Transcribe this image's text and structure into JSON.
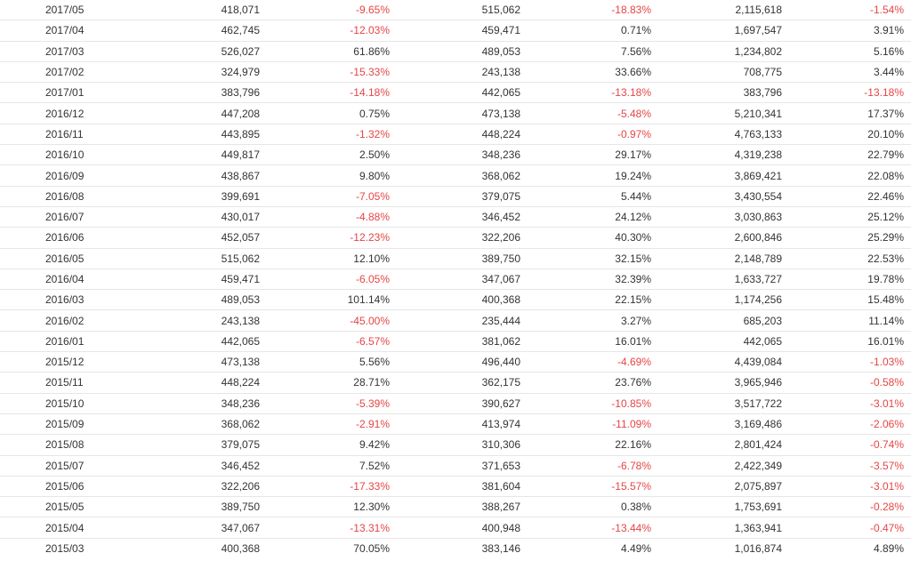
{
  "colors": {
    "text": "#333333",
    "negative": "#e64545",
    "row_border": "#e6e6e6"
  },
  "rows": [
    {
      "date": "2017/05",
      "v1": "418,071",
      "p1": "-9.65%",
      "v2": "515,062",
      "p2": "-18.83%",
      "v3": "2,115,618",
      "p3": "-1.54%"
    },
    {
      "date": "2017/04",
      "v1": "462,745",
      "p1": "-12.03%",
      "v2": "459,471",
      "p2": "0.71%",
      "v3": "1,697,547",
      "p3": "3.91%"
    },
    {
      "date": "2017/03",
      "v1": "526,027",
      "p1": "61.86%",
      "v2": "489,053",
      "p2": "7.56%",
      "v3": "1,234,802",
      "p3": "5.16%"
    },
    {
      "date": "2017/02",
      "v1": "324,979",
      "p1": "-15.33%",
      "v2": "243,138",
      "p2": "33.66%",
      "v3": "708,775",
      "p3": "3.44%"
    },
    {
      "date": "2017/01",
      "v1": "383,796",
      "p1": "-14.18%",
      "v2": "442,065",
      "p2": "-13.18%",
      "v3": "383,796",
      "p3": "-13.18%"
    },
    {
      "date": "2016/12",
      "v1": "447,208",
      "p1": "0.75%",
      "v2": "473,138",
      "p2": "-5.48%",
      "v3": "5,210,341",
      "p3": "17.37%"
    },
    {
      "date": "2016/11",
      "v1": "443,895",
      "p1": "-1.32%",
      "v2": "448,224",
      "p2": "-0.97%",
      "v3": "4,763,133",
      "p3": "20.10%"
    },
    {
      "date": "2016/10",
      "v1": "449,817",
      "p1": "2.50%",
      "v2": "348,236",
      "p2": "29.17%",
      "v3": "4,319,238",
      "p3": "22.79%"
    },
    {
      "date": "2016/09",
      "v1": "438,867",
      "p1": "9.80%",
      "v2": "368,062",
      "p2": "19.24%",
      "v3": "3,869,421",
      "p3": "22.08%"
    },
    {
      "date": "2016/08",
      "v1": "399,691",
      "p1": "-7.05%",
      "v2": "379,075",
      "p2": "5.44%",
      "v3": "3,430,554",
      "p3": "22.46%"
    },
    {
      "date": "2016/07",
      "v1": "430,017",
      "p1": "-4.88%",
      "v2": "346,452",
      "p2": "24.12%",
      "v3": "3,030,863",
      "p3": "25.12%"
    },
    {
      "date": "2016/06",
      "v1": "452,057",
      "p1": "-12.23%",
      "v2": "322,206",
      "p2": "40.30%",
      "v3": "2,600,846",
      "p3": "25.29%"
    },
    {
      "date": "2016/05",
      "v1": "515,062",
      "p1": "12.10%",
      "v2": "389,750",
      "p2": "32.15%",
      "v3": "2,148,789",
      "p3": "22.53%"
    },
    {
      "date": "2016/04",
      "v1": "459,471",
      "p1": "-6.05%",
      "v2": "347,067",
      "p2": "32.39%",
      "v3": "1,633,727",
      "p3": "19.78%"
    },
    {
      "date": "2016/03",
      "v1": "489,053",
      "p1": "101.14%",
      "v2": "400,368",
      "p2": "22.15%",
      "v3": "1,174,256",
      "p3": "15.48%"
    },
    {
      "date": "2016/02",
      "v1": "243,138",
      "p1": "-45.00%",
      "v2": "235,444",
      "p2": "3.27%",
      "v3": "685,203",
      "p3": "11.14%"
    },
    {
      "date": "2016/01",
      "v1": "442,065",
      "p1": "-6.57%",
      "v2": "381,062",
      "p2": "16.01%",
      "v3": "442,065",
      "p3": "16.01%"
    },
    {
      "date": "2015/12",
      "v1": "473,138",
      "p1": "5.56%",
      "v2": "496,440",
      "p2": "-4.69%",
      "v3": "4,439,084",
      "p3": "-1.03%"
    },
    {
      "date": "2015/11",
      "v1": "448,224",
      "p1": "28.71%",
      "v2": "362,175",
      "p2": "23.76%",
      "v3": "3,965,946",
      "p3": "-0.58%"
    },
    {
      "date": "2015/10",
      "v1": "348,236",
      "p1": "-5.39%",
      "v2": "390,627",
      "p2": "-10.85%",
      "v3": "3,517,722",
      "p3": "-3.01%"
    },
    {
      "date": "2015/09",
      "v1": "368,062",
      "p1": "-2.91%",
      "v2": "413,974",
      "p2": "-11.09%",
      "v3": "3,169,486",
      "p3": "-2.06%"
    },
    {
      "date": "2015/08",
      "v1": "379,075",
      "p1": "9.42%",
      "v2": "310,306",
      "p2": "22.16%",
      "v3": "2,801,424",
      "p3": "-0.74%"
    },
    {
      "date": "2015/07",
      "v1": "346,452",
      "p1": "7.52%",
      "v2": "371,653",
      "p2": "-6.78%",
      "v3": "2,422,349",
      "p3": "-3.57%"
    },
    {
      "date": "2015/06",
      "v1": "322,206",
      "p1": "-17.33%",
      "v2": "381,604",
      "p2": "-15.57%",
      "v3": "2,075,897",
      "p3": "-3.01%"
    },
    {
      "date": "2015/05",
      "v1": "389,750",
      "p1": "12.30%",
      "v2": "388,267",
      "p2": "0.38%",
      "v3": "1,753,691",
      "p3": "-0.28%"
    },
    {
      "date": "2015/04",
      "v1": "347,067",
      "p1": "-13.31%",
      "v2": "400,948",
      "p2": "-13.44%",
      "v3": "1,363,941",
      "p3": "-0.47%"
    },
    {
      "date": "2015/03",
      "v1": "400,368",
      "p1": "70.05%",
      "v2": "383,146",
      "p2": "4.49%",
      "v3": "1,016,874",
      "p3": "4.89%"
    }
  ]
}
